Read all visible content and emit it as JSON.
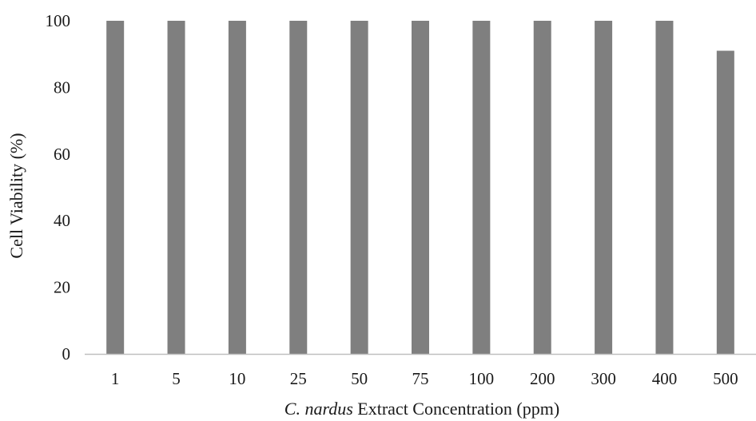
{
  "chart_data": {
    "type": "bar",
    "categories": [
      "1",
      "5",
      "10",
      "25",
      "50",
      "75",
      "100",
      "200",
      "300",
      "400",
      "500"
    ],
    "values": [
      100,
      100,
      100,
      100,
      100,
      100,
      100,
      100,
      100,
      100,
      91
    ],
    "ylabel": "Cell  Viability  (%)",
    "xlabel_italic": "C.  nardus",
    "xlabel_rest": " Extract  Concentration (ppm)",
    "ylim": [
      0,
      100
    ],
    "yticks": [
      0,
      20,
      40,
      60,
      80,
      100
    ],
    "grid": false,
    "bar_color": "#7f7f7f",
    "axis_color": "#bfbfbf"
  }
}
